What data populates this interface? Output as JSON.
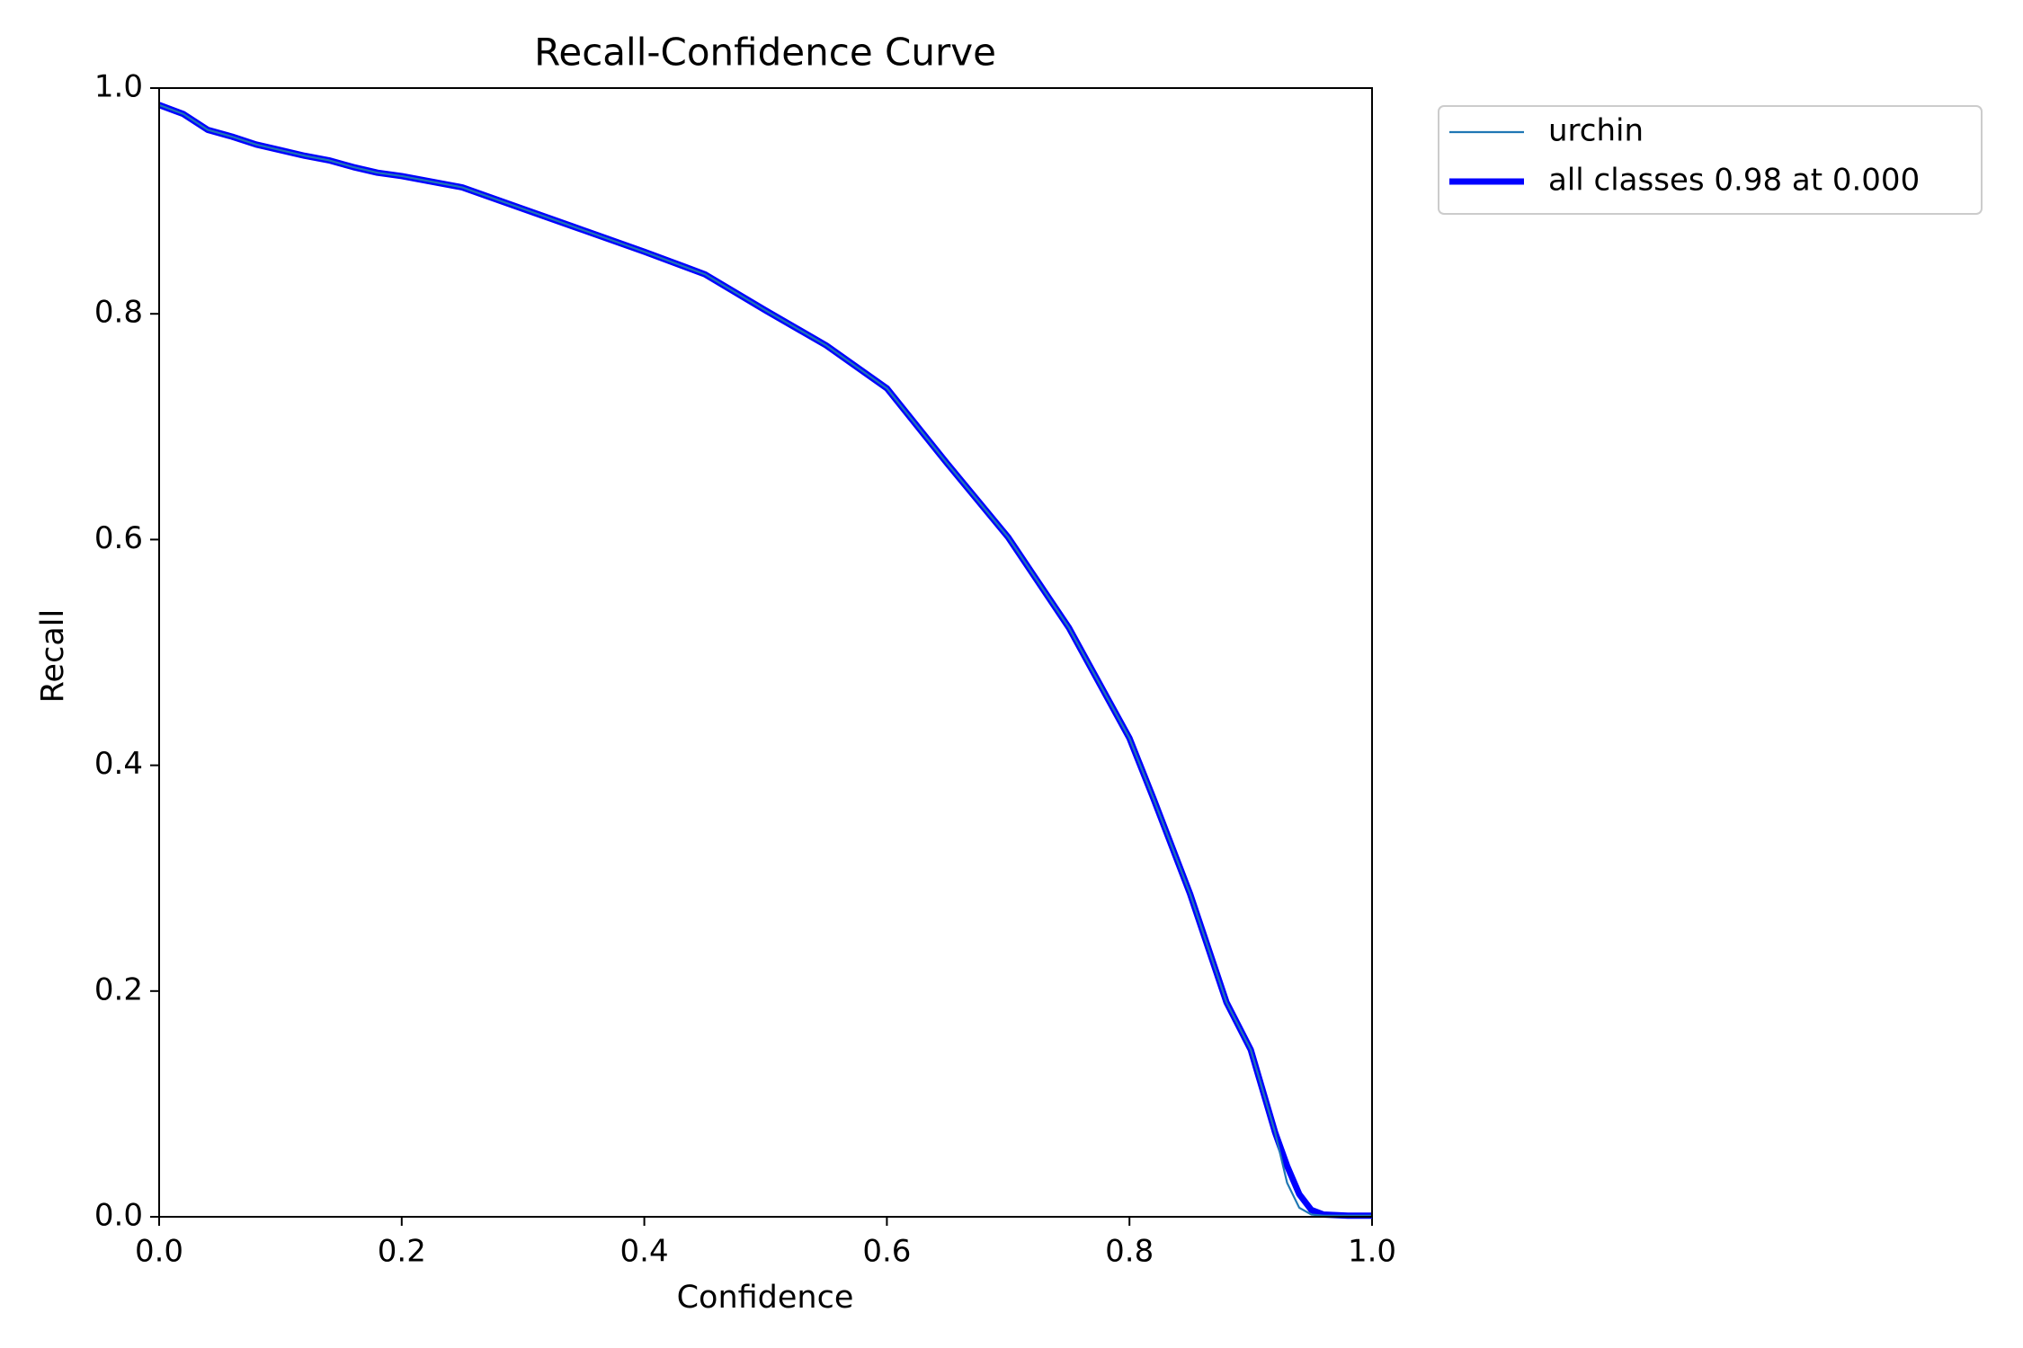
{
  "chart_data": {
    "type": "line",
    "title": "Recall-Confidence Curve",
    "x_label": "Confidence",
    "y_label": "Recall",
    "x": [
      0.0,
      0.02,
      0.04,
      0.06,
      0.08,
      0.1,
      0.12,
      0.14,
      0.16,
      0.18,
      0.2,
      0.25,
      0.3,
      0.35,
      0.4,
      0.45,
      0.5,
      0.55,
      0.6,
      0.65,
      0.7,
      0.75,
      0.8,
      0.82,
      0.85,
      0.88,
      0.9,
      0.92,
      0.93,
      0.94,
      0.95,
      0.96,
      0.98,
      1.0
    ],
    "series": [
      {
        "name": "urchin",
        "color": "#1f77b4",
        "width": "thin",
        "values": [
          0.985,
          0.977,
          0.963,
          0.957,
          0.95,
          0.945,
          0.94,
          0.936,
          0.93,
          0.925,
          0.922,
          0.912,
          0.893,
          0.874,
          0.855,
          0.835,
          0.803,
          0.772,
          0.734,
          0.667,
          0.602,
          0.522,
          0.424,
          0.37,
          0.286,
          0.19,
          0.148,
          0.075,
          0.03,
          0.008,
          0.002,
          0.001,
          0.001,
          0.001
        ]
      },
      {
        "name": "all classes 0.98 at 0.000",
        "color": "#0000ff",
        "width": "thick",
        "values": [
          0.985,
          0.977,
          0.963,
          0.957,
          0.95,
          0.945,
          0.94,
          0.936,
          0.93,
          0.925,
          0.922,
          0.912,
          0.893,
          0.874,
          0.855,
          0.835,
          0.803,
          0.772,
          0.734,
          0.667,
          0.602,
          0.522,
          0.424,
          0.37,
          0.286,
          0.19,
          0.148,
          0.075,
          0.045,
          0.02,
          0.006,
          0.002,
          0.001,
          0.001
        ]
      }
    ],
    "xlim": [
      0,
      1
    ],
    "ylim": [
      0,
      1
    ],
    "xticks": [
      {
        "value": 0,
        "label": "0.0"
      },
      0.2,
      0.4,
      0.6,
      0.8,
      {
        "value": 1,
        "label": "1.0"
      }
    ],
    "yticks": [
      {
        "value": 0,
        "label": "0.0"
      },
      0.2,
      0.4,
      0.6,
      0.8,
      {
        "value": 1,
        "label": "1.0"
      }
    ],
    "legend": "outside upper left"
  }
}
